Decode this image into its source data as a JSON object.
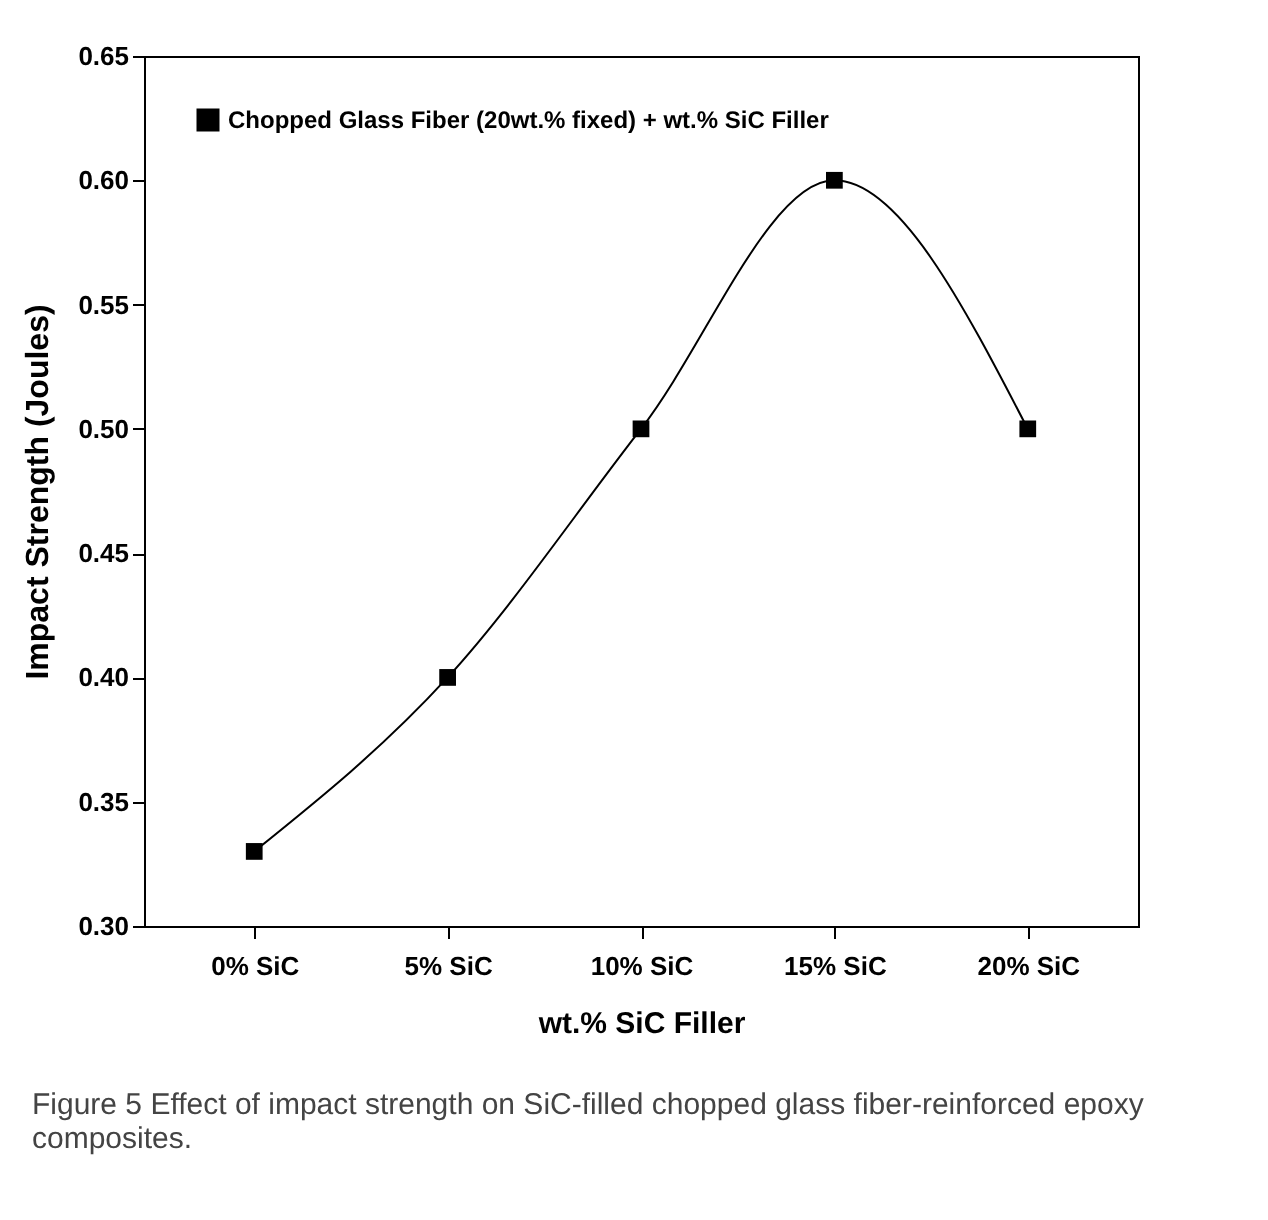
{
  "chart_data": {
    "type": "line",
    "xlabel": "wt.% SiC Filler",
    "ylabel": "Impact Strength (Joules)",
    "categories": [
      "0% SiC",
      "5% SiC",
      "10% SiC",
      "15% SiC",
      "20% SiC"
    ],
    "series": [
      {
        "name": "Chopped Glass Fiber (20wt.% fixed) + wt.% SiC Filler",
        "color": "#000000",
        "values": [
          0.33,
          0.4,
          0.5,
          0.6,
          0.5
        ]
      }
    ],
    "ylim": [
      0.3,
      0.65
    ],
    "yticks": [
      {
        "value": 0.3,
        "label": "0.30"
      },
      0.35,
      {
        "value": 0.4,
        "label": "0.40"
      },
      0.45,
      {
        "value": 0.5,
        "label": "0.50"
      },
      0.55,
      {
        "value": 0.6,
        "label": "0.60"
      },
      0.65
    ],
    "grid": false,
    "legend": "top left",
    "marker": "square",
    "line_style": "solid",
    "annotations": [
      "Figure 5 Effect of impact strength on SiC-filled chopped glass fiber-reinforced epoxy composites."
    ]
  }
}
